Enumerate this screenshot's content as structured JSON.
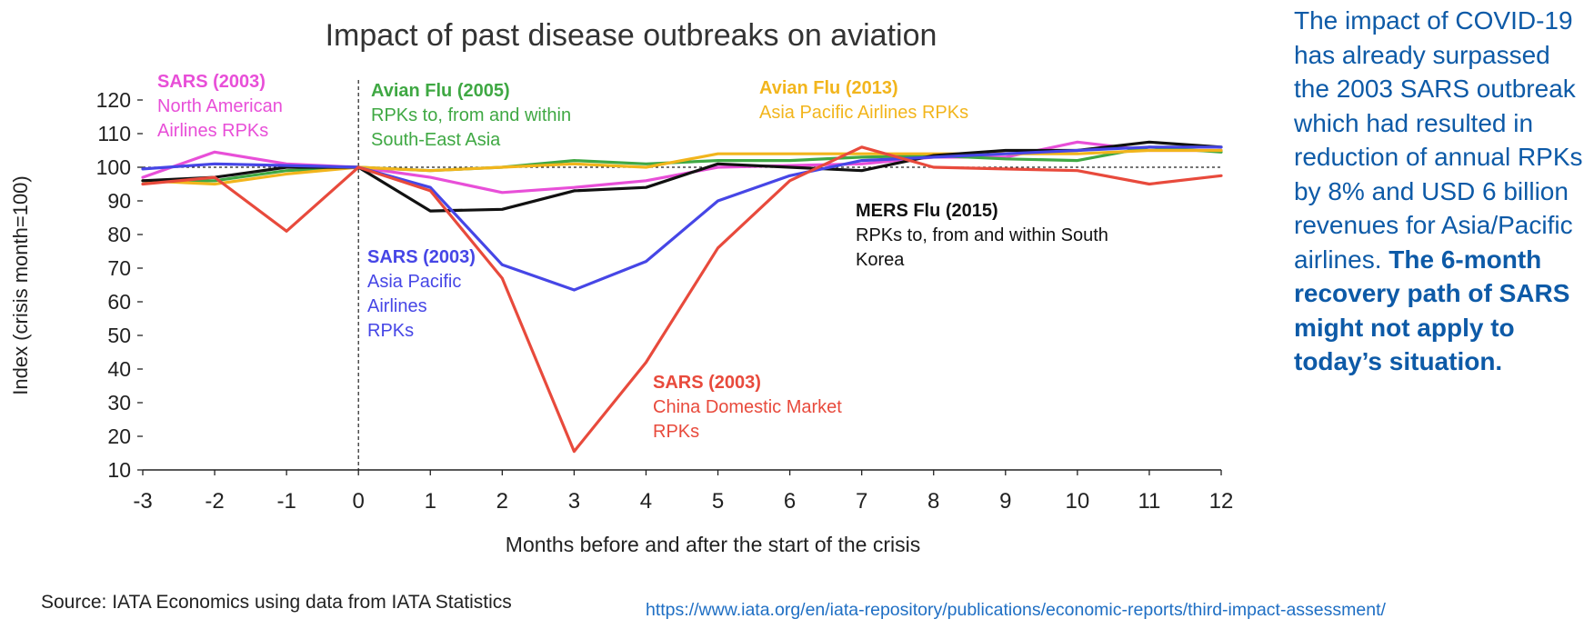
{
  "chart_data": {
    "type": "line",
    "title": "Impact of past disease outbreaks on aviation",
    "xlabel": "Months before and after the start of the crisis",
    "ylabel": "Index (crisis month=100)",
    "x": [
      -3,
      -2,
      -1,
      0,
      1,
      2,
      3,
      4,
      5,
      6,
      7,
      8,
      9,
      10,
      11,
      12
    ],
    "xlim": [
      -3,
      12
    ],
    "ylim": [
      10,
      120
    ],
    "yticks": [
      10,
      20,
      30,
      40,
      50,
      60,
      70,
      80,
      90,
      100,
      110,
      120
    ],
    "reference_line": 100,
    "crisis_marker_x": 0,
    "series": [
      {
        "name": "SARS (2003) North American Airlines RPKs",
        "color": "#e84fd8",
        "values": [
          97,
          104.5,
          101,
          100,
          97,
          92.5,
          94,
          96,
          100,
          100.5,
          101,
          103,
          103,
          107.5,
          105,
          105
        ]
      },
      {
        "name": "Avian Flu (2005) RPKs to, from and within South-East Asia",
        "color": "#3fa843",
        "values": [
          96,
          96,
          99,
          100,
          99,
          100,
          102,
          101,
          102,
          102,
          103,
          103.5,
          102.5,
          102,
          106,
          104.5
        ]
      },
      {
        "name": "Avian Flu (2013) Asia Pacific Airlines RPKs",
        "color": "#f2b51c",
        "values": [
          96,
          95,
          98,
          100,
          99,
          100,
          101,
          100,
          104,
          104,
          104,
          104,
          104,
          104,
          105,
          105
        ]
      },
      {
        "name": "MERS Flu (2015) RPKs to, from and within South Korea",
        "color": "#111111",
        "values": [
          96,
          97,
          100,
          100,
          87,
          87.5,
          93,
          94,
          101,
          100,
          99,
          103.5,
          105,
          105,
          107.5,
          106
        ]
      },
      {
        "name": "SARS (2003) Asia Pacific Airlines RPKs",
        "color": "#4646e6",
        "values": [
          99.5,
          101,
          100.5,
          100,
          94,
          71,
          63.5,
          72,
          90,
          97.5,
          102,
          103,
          104,
          105,
          106,
          106
        ]
      },
      {
        "name": "SARS (2003) China Domestic Market RPKs",
        "color": "#e84a3c",
        "values": [
          95,
          97,
          81,
          100,
          93,
          67,
          15.5,
          42,
          76,
          96,
          106,
          100,
          99.5,
          99,
          95,
          97.5
        ]
      }
    ],
    "annotations": [
      {
        "series": 0,
        "title": "SARS (2003)",
        "lines": [
          "North American",
          "Airlines RPKs"
        ]
      },
      {
        "series": 1,
        "title": "Avian Flu (2005)",
        "lines": [
          "RPKs to, from and within",
          "South-East Asia"
        ]
      },
      {
        "series": 2,
        "title": "Avian Flu (2013)",
        "lines": [
          "Asia Pacific Airlines RPKs"
        ]
      },
      {
        "series": 3,
        "title": "MERS Flu (2015)",
        "lines": [
          "RPKs to, from and within South",
          "Korea"
        ]
      },
      {
        "series": 4,
        "title": "SARS (2003)",
        "lines": [
          "Asia Pacific",
          "Airlines",
          "RPKs"
        ]
      },
      {
        "series": 5,
        "title": "SARS (2003)",
        "lines": [
          "China Domestic Market",
          "RPKs"
        ]
      }
    ]
  },
  "sidebar": {
    "text": "The impact of COVID-19 has already surpassed the 2003 SARS outbreak which had resulted in reduction of annual RPKs by 8% and USD 6 billion revenues for Asia/Pacific airlines.",
    "bold_text": "The 6-month recovery path of SARS  might not apply to today’s situation."
  },
  "source": "Source: IATA Economics using data from IATA Statistics",
  "url": "https://www.iata.org/en/iata-repository/publications/economic-reports/third-impact-assessment/"
}
